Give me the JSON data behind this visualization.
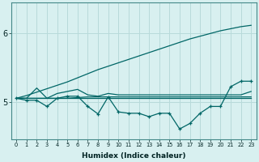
{
  "xlabel": "Humidex (Indice chaleur)",
  "x": [
    0,
    1,
    2,
    3,
    4,
    5,
    6,
    7,
    8,
    9,
    10,
    11,
    12,
    13,
    14,
    15,
    16,
    17,
    18,
    19,
    20,
    21,
    22,
    23
  ],
  "line_diagonal": [
    5.05,
    5.09,
    5.14,
    5.19,
    5.24,
    5.29,
    5.35,
    5.41,
    5.47,
    5.52,
    5.57,
    5.62,
    5.67,
    5.72,
    5.77,
    5.82,
    5.87,
    5.92,
    5.96,
    6.0,
    6.04,
    6.07,
    6.1,
    6.12
  ],
  "line_flat1": [
    5.05,
    5.05,
    5.05,
    5.05,
    5.05,
    5.05,
    5.06,
    5.07,
    5.07,
    5.07,
    5.07,
    5.07,
    5.07,
    5.07,
    5.07,
    5.07,
    5.07,
    5.07,
    5.07,
    5.07,
    5.07,
    5.07,
    5.07,
    5.07
  ],
  "line_flat2": [
    5.05,
    5.05,
    5.05,
    5.05,
    5.05,
    5.05,
    5.05,
    5.05,
    5.05,
    5.05,
    5.05,
    5.05,
    5.05,
    5.05,
    5.05,
    5.05,
    5.05,
    5.05,
    5.05,
    5.05,
    5.05,
    5.05,
    5.05,
    5.05
  ],
  "line_upper": [
    5.05,
    5.05,
    5.2,
    5.05,
    5.12,
    5.15,
    5.18,
    5.1,
    5.08,
    5.12,
    5.1,
    5.1,
    5.1,
    5.1,
    5.1,
    5.1,
    5.1,
    5.1,
    5.1,
    5.1,
    5.1,
    5.1,
    5.1,
    5.15
  ],
  "line_wavy": [
    5.05,
    5.02,
    5.02,
    4.93,
    5.05,
    5.08,
    5.08,
    4.93,
    4.82,
    5.07,
    4.85,
    4.83,
    4.83,
    4.78,
    4.83,
    4.83,
    4.6,
    4.68,
    4.83,
    4.93,
    4.93,
    5.22,
    5.3,
    5.3
  ],
  "color": "#006666",
  "bg_color": "#d8f0f0",
  "grid_color": "#b8dada",
  "ylim": [
    4.45,
    6.45
  ],
  "yticks": [
    5,
    6
  ]
}
